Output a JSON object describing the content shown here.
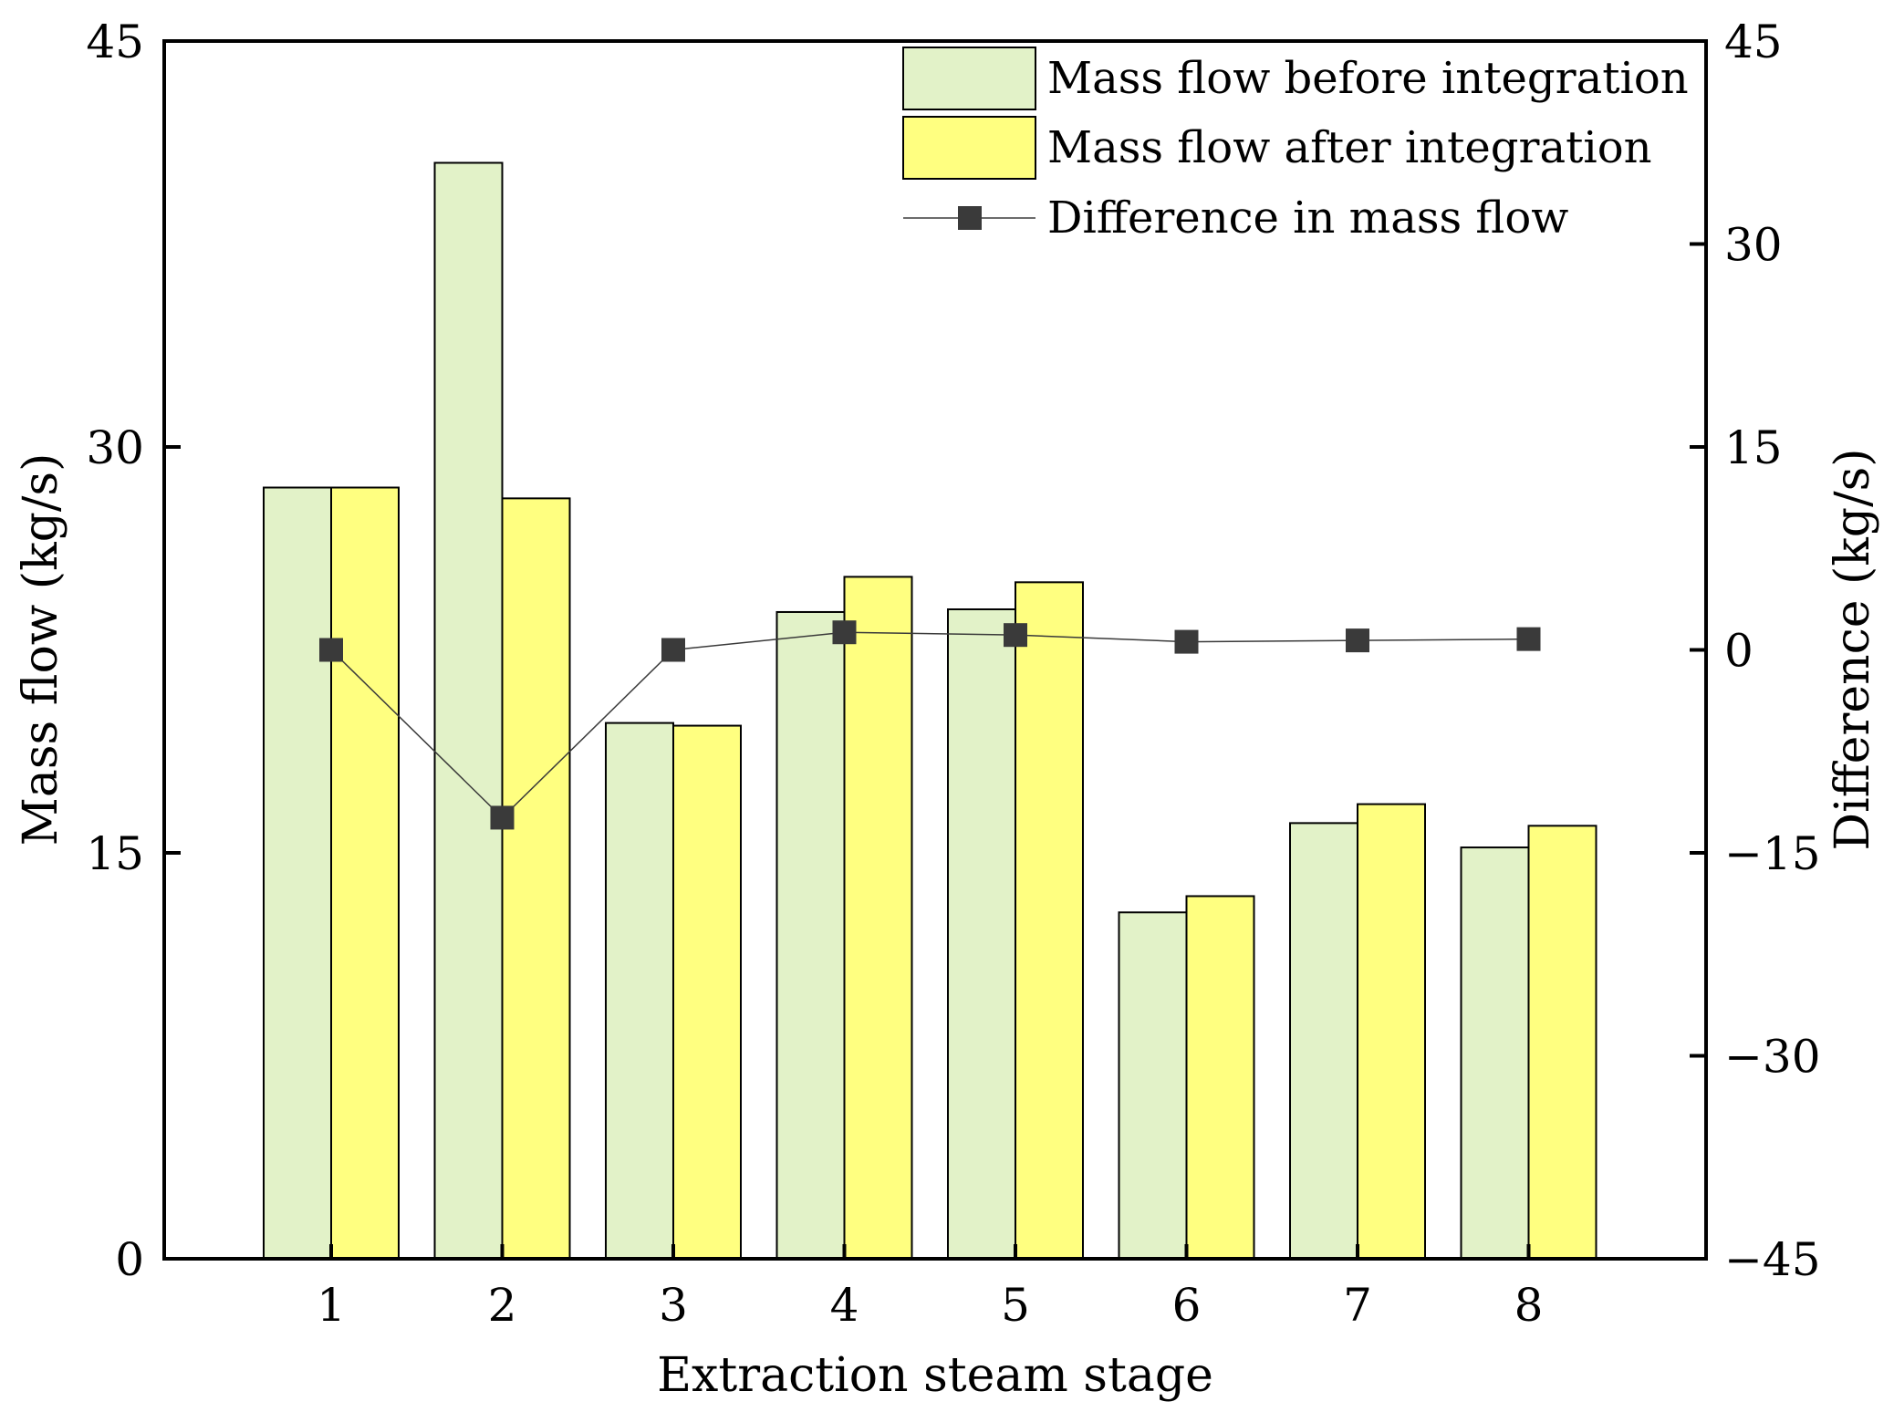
{
  "chart_data": {
    "type": "bar",
    "categories": [
      "1",
      "2",
      "3",
      "4",
      "5",
      "6",
      "7",
      "8"
    ],
    "series": [
      {
        "name": "Mass flow before integration",
        "kind": "bar",
        "color": "#e2f2c8",
        "values": [
          28.5,
          40.5,
          19.8,
          23.9,
          24.0,
          12.8,
          16.1,
          15.2
        ]
      },
      {
        "name": "Mass flow after integration",
        "kind": "bar",
        "color": "#ffff80",
        "values": [
          28.5,
          28.1,
          19.7,
          25.2,
          25.0,
          13.4,
          16.8,
          16.0
        ]
      },
      {
        "name": "Difference in mass flow",
        "kind": "line",
        "axis": "right",
        "color": "#3a3a3a",
        "values": [
          0.0,
          -12.4,
          0.0,
          1.3,
          1.1,
          0.6,
          0.7,
          0.8
        ]
      }
    ],
    "xlabel": "Extraction steam stage",
    "ylabel": "Mass flow (kg/s)",
    "y2label": "Difference (kg/s)",
    "ylim": [
      0,
      45
    ],
    "y2lim": [
      -45,
      45
    ],
    "yticks": [
      "0",
      "15",
      "30",
      "45"
    ],
    "y2ticks": [
      "−45",
      "−30",
      "−15",
      "0",
      "15",
      "30",
      "45"
    ],
    "legend": "top-right",
    "grid": false
  }
}
